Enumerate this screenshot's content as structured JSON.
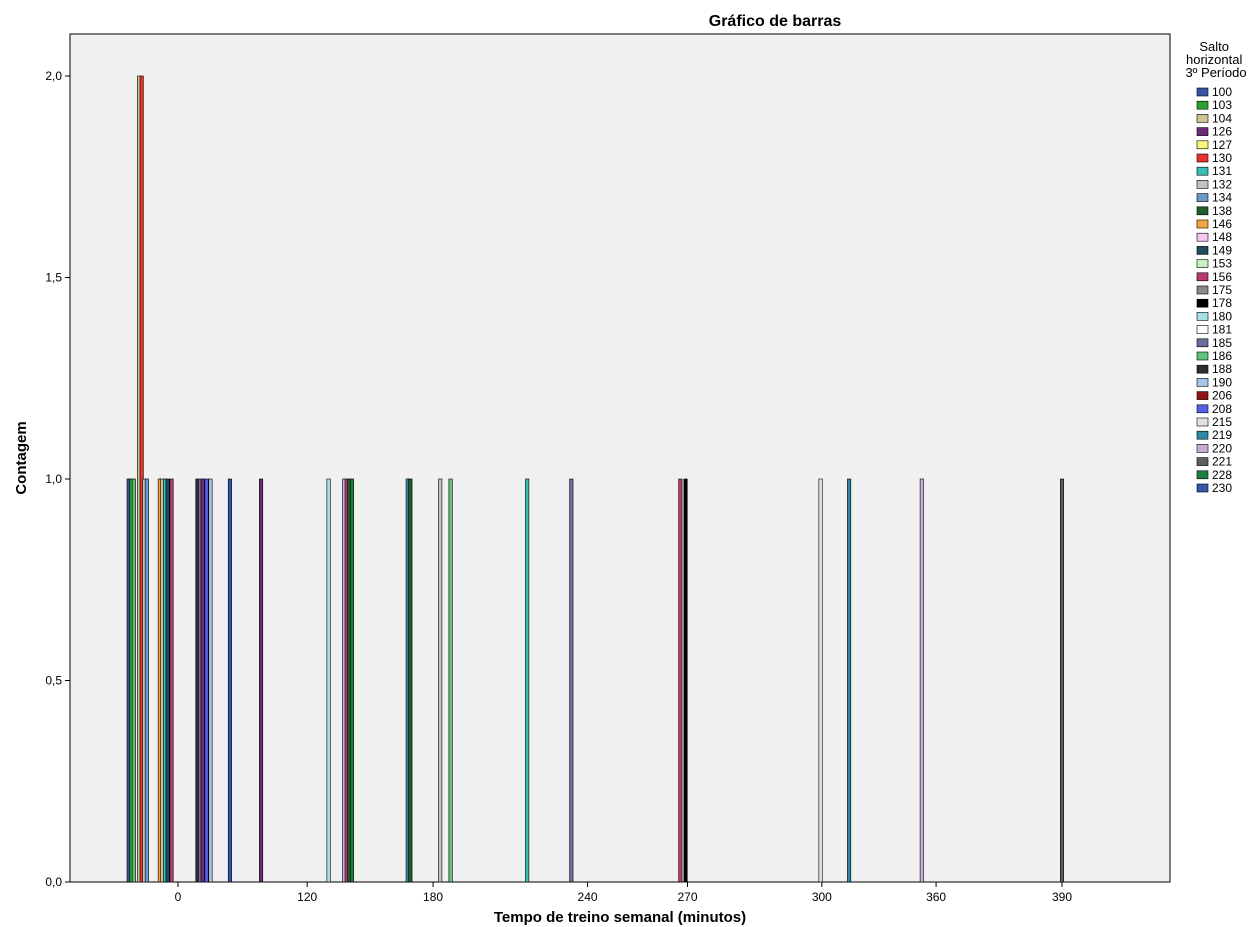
{
  "chart_data": {
    "type": "bar",
    "title": "Gráfico de barras",
    "xlabel": "Tempo de treino semanal (minutos)",
    "ylabel": "Contagem",
    "ylim": [
      0,
      2.1
    ],
    "y_ticks": [
      {
        "value": 0,
        "label": "0,0"
      },
      {
        "value": 0.5,
        "label": "0,5"
      },
      {
        "value": 1.0,
        "label": "1,0"
      },
      {
        "value": 1.5,
        "label": "1,5"
      },
      {
        "value": 2.0,
        "label": "2,0"
      }
    ],
    "x_ticks": [
      "0",
      "120",
      "180",
      "240",
      "270",
      "300",
      "360",
      "390"
    ],
    "legend": {
      "title": "Salto horizontal 3º Período",
      "placement": "right",
      "entries": [
        {
          "label": "100",
          "color": "#3953a4"
        },
        {
          "label": "103",
          "color": "#2ca02c"
        },
        {
          "label": "104",
          "color": "#cfc492"
        },
        {
          "label": "126",
          "color": "#6e2a78"
        },
        {
          "label": "127",
          "color": "#fbf47a"
        },
        {
          "label": "130",
          "color": "#e8312f"
        },
        {
          "label": "131",
          "color": "#3bbdb7"
        },
        {
          "label": "132",
          "color": "#c2c2c2"
        },
        {
          "label": "134",
          "color": "#6a9bc8"
        },
        {
          "label": "138",
          "color": "#1f5f2a"
        },
        {
          "label": "146",
          "color": "#f6a341"
        },
        {
          "label": "148",
          "color": "#f3c8ec"
        },
        {
          "label": "149",
          "color": "#1d4e5e"
        },
        {
          "label": "153",
          "color": "#c6f2c0"
        },
        {
          "label": "156",
          "color": "#b83a70"
        },
        {
          "label": "175",
          "color": "#8a8a8a"
        },
        {
          "label": "178",
          "color": "#000000"
        },
        {
          "label": "180",
          "color": "#a6dfe6"
        },
        {
          "label": "181",
          "color": "#ffffff"
        },
        {
          "label": "185",
          "color": "#6b6e9c"
        },
        {
          "label": "186",
          "color": "#62c17a"
        },
        {
          "label": "188",
          "color": "#2e2e2e"
        },
        {
          "label": "190",
          "color": "#a3c6e8"
        },
        {
          "label": "206",
          "color": "#8f1515"
        },
        {
          "label": "208",
          "color": "#5560e6"
        },
        {
          "label": "215",
          "color": "#e2e2e2"
        },
        {
          "label": "219",
          "color": "#2f89a6"
        },
        {
          "label": "220",
          "color": "#c7aed6"
        },
        {
          "label": "221",
          "color": "#5e5e5e"
        },
        {
          "label": "228",
          "color": "#1a7f3f"
        },
        {
          "label": "230",
          "color": "#3a55b0"
        }
      ]
    },
    "bars": [
      {
        "x": -38,
        "count": 1,
        "color": "#3953a4"
      },
      {
        "x": -36,
        "count": 1,
        "color": "#2ca02c"
      },
      {
        "x": -34,
        "count": 1,
        "color": "#62c17a"
      },
      {
        "x": -30,
        "count": 2,
        "color": "#cfc492"
      },
      {
        "x": -28,
        "count": 2,
        "color": "#e8312f"
      },
      {
        "x": -26,
        "count": 1,
        "color": "#c2c2c2"
      },
      {
        "x": -24,
        "count": 1,
        "color": "#6a9bc8"
      },
      {
        "x": -14,
        "count": 1,
        "color": "#f6a341"
      },
      {
        "x": -12,
        "count": 1,
        "color": "#cfc492"
      },
      {
        "x": -10,
        "count": 1,
        "color": "#3bbdb7"
      },
      {
        "x": -8,
        "count": 1,
        "color": "#1d4e5e"
      },
      {
        "x": -5,
        "count": 1,
        "color": "#b83a70"
      },
      {
        "x": 15,
        "count": 1,
        "color": "#2e2e2e"
      },
      {
        "x": 17,
        "count": 1,
        "color": "#6b6e9c"
      },
      {
        "x": 19,
        "count": 1,
        "color": "#6e2a78"
      },
      {
        "x": 22,
        "count": 1,
        "color": "#5560e6"
      },
      {
        "x": 25,
        "count": 1,
        "color": "#a3c6e8"
      },
      {
        "x": 40,
        "count": 1,
        "color": "#3a55b0"
      },
      {
        "x": 64,
        "count": 1,
        "color": "#6e2a78"
      },
      {
        "x": 116,
        "count": 1,
        "color": "#a6dfe6"
      },
      {
        "x": 128,
        "count": 1,
        "color": "#c7aed6"
      },
      {
        "x": 130,
        "count": 1,
        "color": "#b83a70"
      },
      {
        "x": 132,
        "count": 1,
        "color": "#1f5f2a"
      },
      {
        "x": 134,
        "count": 1,
        "color": "#1a7f3f"
      },
      {
        "x": 177,
        "count": 1,
        "color": "#2f89a6"
      },
      {
        "x": 179,
        "count": 1,
        "color": "#1f5f2a"
      },
      {
        "x": 202,
        "count": 1,
        "color": "#c2c2c2"
      },
      {
        "x": 210,
        "count": 1,
        "color": "#62c17a"
      },
      {
        "x": 269,
        "count": 1,
        "color": "#3bbdb7"
      },
      {
        "x": 303,
        "count": 1,
        "color": "#6b6e9c"
      },
      {
        "x": 387,
        "count": 1,
        "color": "#b83a70"
      },
      {
        "x": 391,
        "count": 1,
        "color": "#000000"
      },
      {
        "x": 495,
        "count": 1,
        "color": "#e2e2e2"
      },
      {
        "x": 517,
        "count": 1,
        "color": "#2f89a6"
      },
      {
        "x": 573,
        "count": 1,
        "color": "#c7aed6"
      },
      {
        "x": 681,
        "count": 1,
        "color": "#5e5e5e"
      }
    ]
  }
}
